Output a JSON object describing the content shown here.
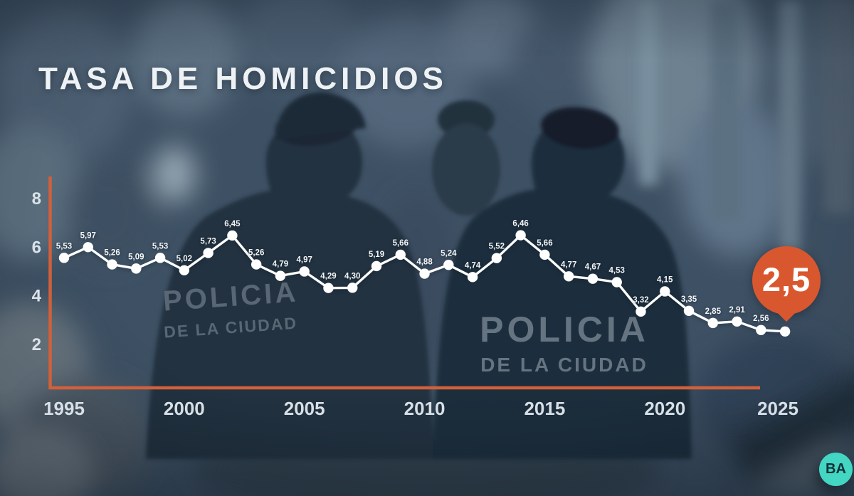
{
  "title": "TASA DE HOMICIDIOS",
  "chart_data": {
    "type": "line",
    "title": "TASA DE HOMICIDIOS",
    "xlabel": "",
    "ylabel": "",
    "x": [
      1995,
      1996,
      1997,
      1998,
      1999,
      2000,
      2001,
      2002,
      2003,
      2004,
      2005,
      2006,
      2007,
      2008,
      2009,
      2010,
      2011,
      2012,
      2013,
      2014,
      2015,
      2016,
      2017,
      2018,
      2019,
      2020,
      2021,
      2022,
      2023,
      2024,
      2025
    ],
    "values": [
      5.53,
      5.97,
      5.26,
      5.09,
      5.53,
      5.02,
      5.73,
      6.45,
      5.26,
      4.79,
      4.97,
      4.29,
      4.3,
      5.19,
      5.66,
      4.88,
      5.24,
      4.74,
      5.52,
      6.46,
      5.66,
      4.77,
      4.67,
      4.53,
      3.32,
      4.15,
      3.35,
      2.85,
      2.91,
      2.56,
      2.5
    ],
    "point_labels": [
      "5,53",
      "5,97",
      "5,26",
      "5,09",
      "5,53",
      "5,02",
      "5,73",
      "6,45",
      "5,26",
      "4,79",
      "4,97",
      "4,29",
      "4,30",
      "5,19",
      "5,66",
      "4,88",
      "5,24",
      "4,74",
      "5,52",
      "6,46",
      "5,66",
      "4,77",
      "4,67",
      "4,53",
      "3,32",
      "4,15",
      "3,35",
      "2,85",
      "2,91",
      "2,56",
      ""
    ],
    "yticks": [
      8,
      6,
      4,
      2
    ],
    "xticks": [
      1995,
      2000,
      2005,
      2010,
      2015,
      2020,
      2025
    ],
    "ylim": [
      0,
      8.8
    ],
    "grid": false,
    "legend": "none",
    "line_color": "#ffffff",
    "axis_color": "#d2603a",
    "final_badge": {
      "label": "2,5",
      "color": "#d9572e"
    }
  },
  "background": {
    "jacket_left": {
      "line1": "POLICIA",
      "line2": "DE LA CIUDAD"
    },
    "jacket_right": {
      "line1": "POLICIA",
      "line2": "DE LA CIUDAD"
    }
  },
  "logo": {
    "text": "BA",
    "color": "#43d6c2"
  }
}
